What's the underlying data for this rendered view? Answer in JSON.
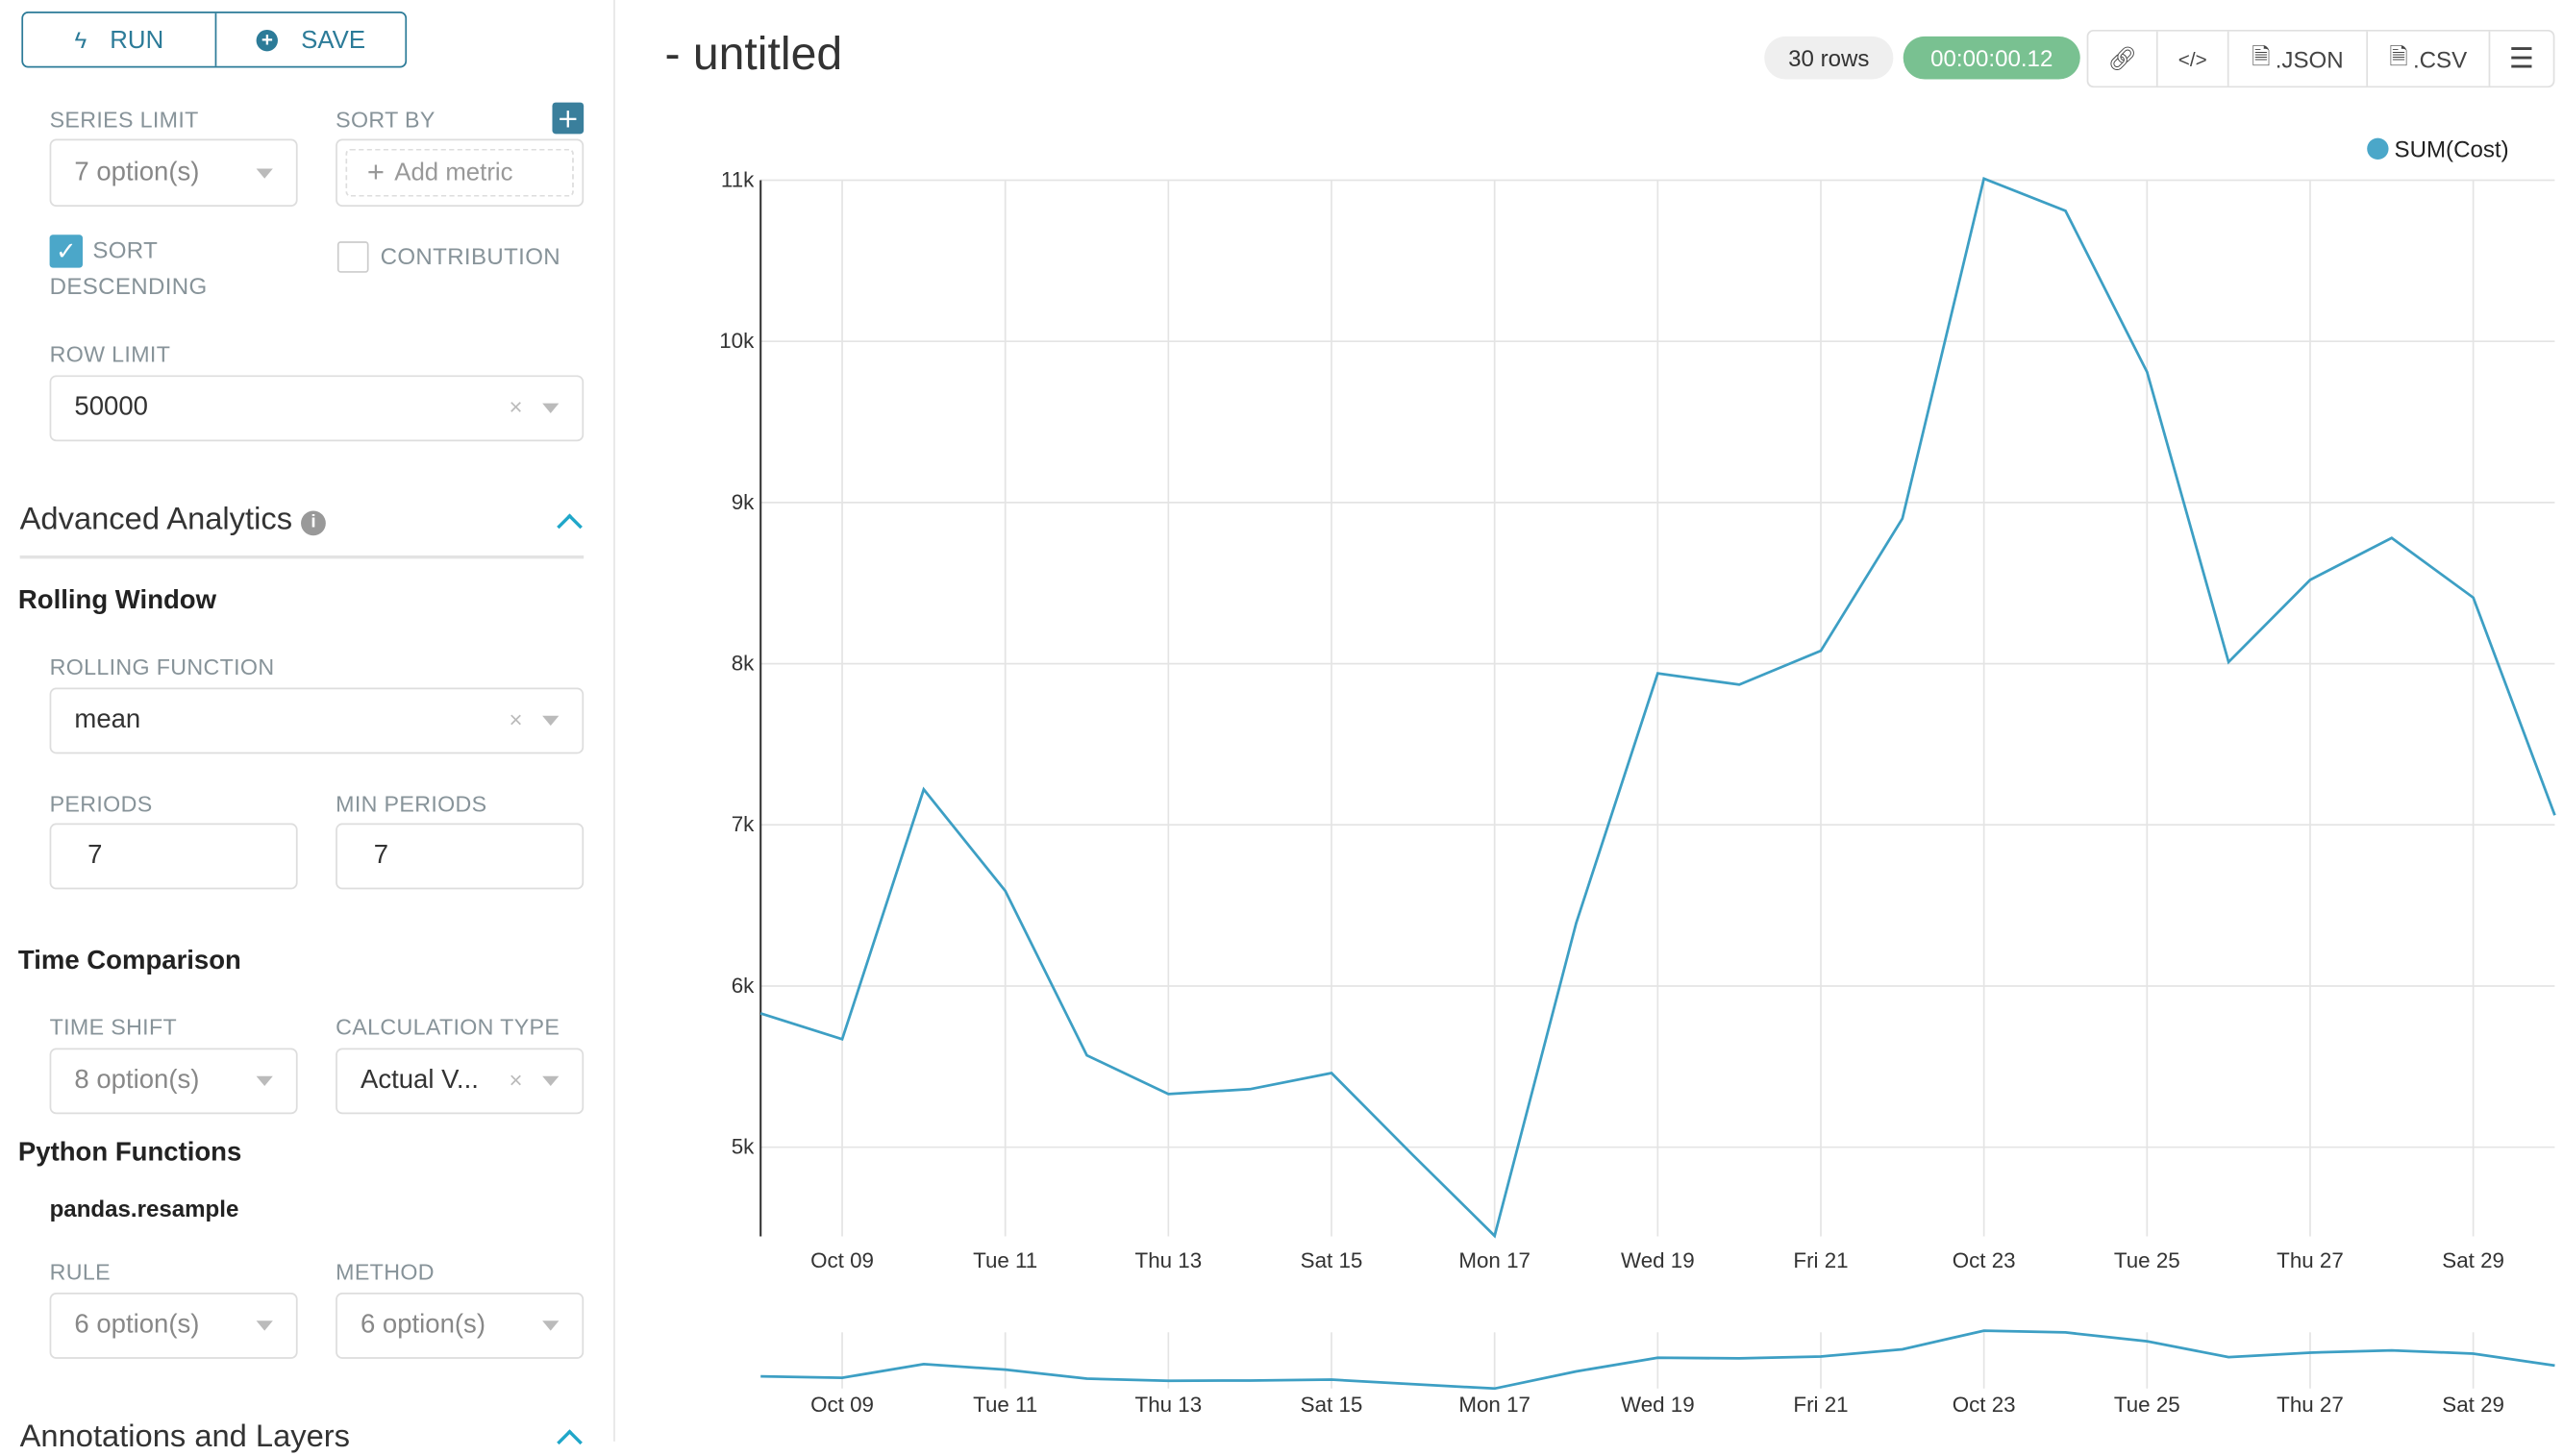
{
  "toolbar": {
    "run_label": "RUN",
    "save_label": "SAVE"
  },
  "controls": {
    "series_limit": {
      "label": "SERIES LIMIT",
      "value": "7 option(s)"
    },
    "sort_by": {
      "label": "SORT BY",
      "placeholder": "Add metric"
    },
    "sort_descending": {
      "label_line1": "SORT",
      "label_line2": "DESCENDING",
      "checked": true
    },
    "contribution": {
      "label": "CONTRIBUTION",
      "checked": false
    },
    "row_limit": {
      "label": "ROW LIMIT",
      "value": "50000"
    }
  },
  "advanced": {
    "title": "Advanced Analytics",
    "rolling_window": {
      "title": "Rolling Window",
      "function_label": "ROLLING FUNCTION",
      "function_value": "mean",
      "periods_label": "PERIODS",
      "periods_value": "7",
      "min_periods_label": "MIN PERIODS",
      "min_periods_value": "7"
    },
    "time_comparison": {
      "title": "Time Comparison",
      "time_shift_label": "TIME SHIFT",
      "time_shift_value": "8 option(s)",
      "calc_type_label": "CALCULATION TYPE",
      "calc_type_value": "Actual V..."
    },
    "python_functions": {
      "title": "Python Functions",
      "subtitle": "pandas.resample",
      "rule_label": "RULE",
      "rule_value": "6 option(s)",
      "method_label": "METHOD",
      "method_value": "6 option(s)"
    }
  },
  "annotations": {
    "title": "Annotations and Layers"
  },
  "header": {
    "title": "- untitled",
    "rows_badge": "30 rows",
    "timer_badge": "00:00:00.12",
    "json_label": ".JSON",
    "csv_label": ".CSV"
  },
  "colors": {
    "accent": "#337ab7",
    "brand": "#2c7b98",
    "line": "#3d9fc4",
    "timer": "#79c191",
    "checkbox": "#4ba7c9"
  },
  "chart_data": {
    "type": "line",
    "legend": [
      "SUM(Cost)"
    ],
    "legend_position": "top-right",
    "x": [
      "Oct 08",
      "Oct 09",
      "Oct 10",
      "Oct 11",
      "Oct 12",
      "Oct 13",
      "Oct 14",
      "Oct 15",
      "Oct 16",
      "Oct 17",
      "Oct 18",
      "Oct 19",
      "Oct 20",
      "Oct 21",
      "Oct 22",
      "Oct 23",
      "Oct 24",
      "Oct 25",
      "Oct 26",
      "Oct 27",
      "Oct 28",
      "Oct 29",
      "Oct 30"
    ],
    "series": [
      {
        "name": "SUM(Cost)",
        "values": [
          5830,
          5670,
          7220,
          6590,
          5570,
          5330,
          5360,
          5460,
          4950,
          4450,
          6390,
          7940,
          7870,
          8080,
          8900,
          11010,
          10810,
          9810,
          8010,
          8520,
          8780,
          8410,
          7060
        ]
      }
    ],
    "x_tick_labels": [
      "Oct 09",
      "Tue 11",
      "Thu 13",
      "Sat 15",
      "Mon 17",
      "Wed 19",
      "Fri 21",
      "Oct 23",
      "Tue 25",
      "Thu 27",
      "Sat 29"
    ],
    "y_tick_labels": [
      "5k",
      "6k",
      "7k",
      "8k",
      "9k",
      "10k",
      "11k"
    ],
    "y_ticks": [
      5000,
      6000,
      7000,
      8000,
      9000,
      10000,
      11000
    ],
    "ylim": [
      4450,
      11010
    ],
    "grid": true,
    "has_range_selector": true
  }
}
